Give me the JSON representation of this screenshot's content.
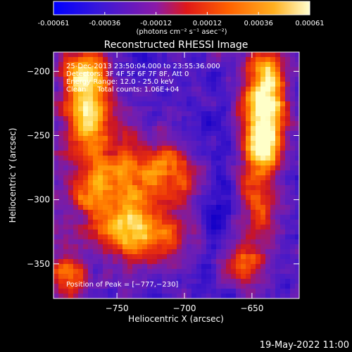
{
  "chart_data": {
    "type": "heatmap",
    "title": "Reconstructed RHESSI Image",
    "xlabel": "Heliocentric X (arcsec)",
    "ylabel": "Heliocentric Y (arcsec)",
    "xlim": [
      -797,
      -615
    ],
    "ylim": [
      -377,
      -185
    ],
    "x_ticks": [
      -750,
      -700,
      -650
    ],
    "y_ticks": [
      -200,
      -250,
      -300,
      -350
    ],
    "x_tick_labels": [
      "−750",
      "−700",
      "−650"
    ],
    "y_tick_labels": [
      "−200",
      "−250",
      "−300",
      "−350"
    ],
    "colorbar": {
      "range": [
        -0.00061,
        0.00061
      ],
      "tick_labels": [
        "-0.00061",
        "-0.00036",
        "-0.00012",
        "0.00012",
        "0.00036",
        "0.00061"
      ],
      "units_label": "(photons cm⁻² s⁻¹ asec⁻²)"
    },
    "annotations": [
      "25-Dec-2013 23:50:04.000 to 23:55:36.000",
      "Detectors: 3F 4F 5F 6F 7F 8F, Att 0",
      "Energy Range: 12.0 - 25.0 keV",
      "Clean     Total counts: 1.06E+04",
      "Position of Peak = [−777,−230]"
    ],
    "peak_position": [
      -777,
      -230
    ],
    "grid": false,
    "colors": {
      "background": "#000000",
      "colormap": [
        "#0000ff",
        "#6a20c8",
        "#a01e8c",
        "#e11e1e",
        "#ff7800",
        "#ffe020",
        "#ffffc8"
      ]
    }
  },
  "footer": {
    "timestamp": "19-May-2022 11:00"
  }
}
